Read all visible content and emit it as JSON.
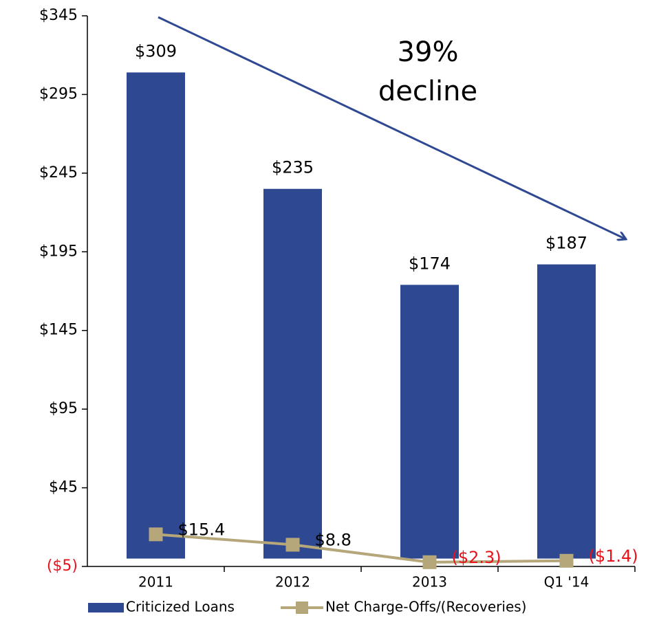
{
  "chart_data": {
    "type": "bar",
    "categories": [
      "2011",
      "2012",
      "2013",
      "Q1 '14"
    ],
    "series": [
      {
        "name": "Criticized Loans",
        "type": "bar",
        "color": "#2e4892",
        "values": [
          309,
          235,
          174,
          187
        ],
        "value_labels": [
          "$309",
          "$235",
          "$174",
          "$187"
        ]
      },
      {
        "name": "Net Charge-Offs/(Recoveries)",
        "type": "line",
        "color": "#b5a77a",
        "values": [
          15.4,
          8.8,
          -2.3,
          -1.4
        ],
        "value_labels": [
          "$15.4",
          "$8.8",
          "($2.3)",
          "($1.4)"
        ]
      }
    ],
    "ylim": [
      -5,
      345
    ],
    "yticks": [
      {
        "value": -5,
        "label": "($5)"
      },
      {
        "value": 45,
        "label": "$45"
      },
      {
        "value": 95,
        "label": "$95"
      },
      {
        "value": 145,
        "label": "$145"
      },
      {
        "value": 195,
        "label": "$195"
      },
      {
        "value": 245,
        "label": "$245"
      },
      {
        "value": 295,
        "label": "$295"
      },
      {
        "value": 345,
        "label": "$345"
      }
    ],
    "negative_label_color": "#e8121b",
    "annotation": [
      "39%",
      "decline"
    ],
    "legend": "bottom"
  }
}
